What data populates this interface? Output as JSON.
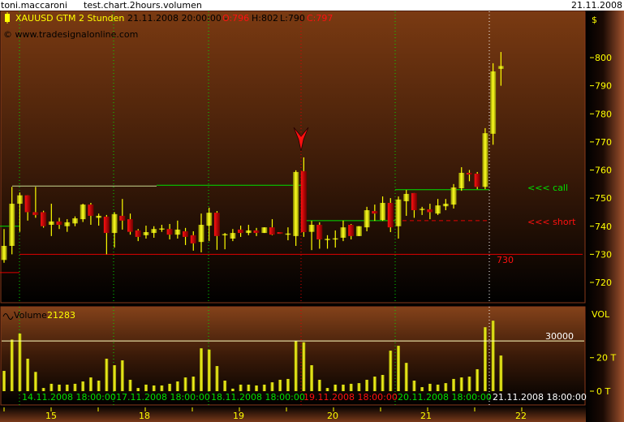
{
  "titlebar": {
    "user": "toni.maccaroni",
    "document": "test.chart.2hours.volumen",
    "date": "21.11.2008"
  },
  "price_panel": {
    "symbol": "XAUUSD GTM 2 Stunden",
    "timestamp": "21.11.2008 20:00:00 -",
    "open_label": "O:796",
    "high_label": "H:802",
    "low_label": "L:790",
    "close_label": "C:797",
    "copyright": "© www.tradesignalonline.com",
    "currency": "$",
    "call_label": "<<< call",
    "short_label": "<<< short",
    "level_label": "730"
  },
  "volume_panel": {
    "title": "Volume",
    "value": "21283",
    "axis_title": "VOL",
    "threshold_label": "30000"
  },
  "date_labels": [
    "14.11.2008 18:00:00",
    "17.11.2008 18:00:00",
    "18.11.2008 18:00:00",
    "19.11.2008 18:00:00",
    "20.11.2008 18:00:00",
    "21.11.2008 18:00:00"
  ],
  "colors": {
    "up": "#f0f000",
    "down": "#e00000",
    "background_top": "#7a3a12",
    "grid_green": "#00e000",
    "grid_red": "#e00000",
    "axis_text": "#ffff00"
  },
  "chart_data": [
    {
      "type": "candlestick",
      "yticks": [
        720,
        730,
        740,
        750,
        760,
        770,
        780,
        790,
        800
      ],
      "ylim": [
        716,
        808
      ],
      "xticks": [
        "15",
        "18",
        "19",
        "20",
        "21",
        "22"
      ],
      "candles": [
        [
          728,
          733,
          739,
          727
        ],
        [
          733,
          748,
          754,
          730
        ],
        [
          748,
          751,
          752,
          738
        ],
        [
          751,
          745,
          751,
          742
        ],
        [
          745,
          744,
          754,
          743
        ],
        [
          745,
          740,
          745.5,
          739.5
        ],
        [
          740.5,
          741.7,
          748,
          736.5
        ],
        [
          741.7,
          740.5,
          743,
          739
        ],
        [
          740,
          741.4,
          742.5,
          738
        ],
        [
          741,
          742.8,
          743.5,
          740
        ],
        [
          742.5,
          747.7,
          748,
          741.5
        ],
        [
          747.7,
          743.7,
          748.3,
          740.5
        ],
        [
          743,
          743.7,
          744.5,
          740.2
        ],
        [
          743.4,
          737.6,
          744,
          730
        ],
        [
          737.6,
          744.3,
          745,
          732.4
        ],
        [
          743.7,
          742,
          749.7,
          738.8
        ],
        [
          742.5,
          738,
          744.5,
          737
        ],
        [
          738.5,
          736.2,
          739,
          734.7
        ],
        [
          736.8,
          737.9,
          740.2,
          735.6
        ],
        [
          737.6,
          739,
          740,
          735.9
        ],
        [
          739,
          739.2,
          740.5,
          738
        ],
        [
          739,
          737,
          740.8,
          735.3
        ],
        [
          737,
          738.8,
          742,
          735.6
        ],
        [
          738.2,
          736.2,
          739.4,
          733.3
        ],
        [
          736.8,
          733.9,
          738.2,
          731.3
        ],
        [
          734.4,
          740.5,
          744.5,
          730.7
        ],
        [
          740.2,
          744.8,
          746.6,
          734.7
        ],
        [
          744.8,
          736.5,
          745.4,
          731.6
        ],
        [
          736.8,
          737.2,
          737.6,
          731.8
        ],
        [
          735.6,
          737.6,
          739,
          734.7
        ],
        [
          738.8,
          737.6,
          740.2,
          736.2
        ],
        [
          737.6,
          738.5,
          740.5,
          736.8
        ],
        [
          738.5,
          737.6,
          739.4,
          736.5
        ],
        [
          737.6,
          739.6,
          739.6,
          737.6
        ],
        [
          739.6,
          737,
          742.5,
          736.8
        ],
        [
          737.9,
          737.3,
          737.9,
          737.3
        ],
        [
          737.2,
          737.4,
          739.6,
          735
        ],
        [
          736.5,
          759.3,
          759.9,
          733
        ],
        [
          759.6,
          737.9,
          764.5,
          736.2
        ],
        [
          738,
          740.5,
          741.9,
          731.5
        ],
        [
          740.5,
          735.3,
          741.4,
          732
        ],
        [
          735.1,
          735.5,
          736.8,
          732
        ],
        [
          735.5,
          735.7,
          738.5,
          732.4
        ],
        [
          735.9,
          739.6,
          742,
          734.7
        ],
        [
          740.5,
          736.5,
          740.8,
          735.3
        ],
        [
          736.5,
          740,
          740,
          736.5
        ],
        [
          739.6,
          745.7,
          746.9,
          738.2
        ],
        [
          745.4,
          744.5,
          747.7,
          741.9
        ],
        [
          742.2,
          748.3,
          750.6,
          741.9
        ],
        [
          748.3,
          739.6,
          750,
          737.9
        ],
        [
          740,
          749.5,
          750.6,
          735.6
        ],
        [
          748.9,
          751.5,
          752.9,
          743.7
        ],
        [
          751.8,
          745.7,
          751.8,
          743
        ],
        [
          745.8,
          746.2,
          746.9,
          744
        ],
        [
          746,
          745,
          748,
          742.5
        ],
        [
          744.5,
          747.4,
          749.7,
          744
        ],
        [
          747.1,
          748,
          749.7,
          745.7
        ],
        [
          747.7,
          753.8,
          755,
          746.3
        ],
        [
          753.5,
          759,
          761,
          752.6
        ],
        [
          759,
          758.4,
          760,
          756
        ],
        [
          758.7,
          754,
          759.3,
          753.2
        ],
        [
          754,
          773.1,
          774.9,
          753.2
        ],
        [
          772.9,
          795.1,
          798,
          769
        ],
        [
          796,
          797,
          802,
          790
        ]
      ],
      "levels": {
        "call": 753,
        "short": 742,
        "support": 730
      }
    },
    {
      "type": "bar",
      "series_name": "Volume",
      "yticks_labels": [
        "0 T",
        "20 T"
      ],
      "yticks": [
        0,
        20000
      ],
      "ylim": [
        0,
        52000
      ],
      "threshold": 30000,
      "values": [
        12100,
        30800,
        34400,
        19400,
        11500,
        1900,
        4400,
        3900,
        3900,
        4400,
        5800,
        8200,
        6300,
        19400,
        15500,
        18400,
        6800,
        1900,
        3900,
        3400,
        3400,
        4400,
        5800,
        8200,
        8700,
        25600,
        24800,
        15000,
        6300,
        1500,
        3900,
        3900,
        3400,
        3900,
        5300,
        6800,
        7300,
        30000,
        29200,
        15500,
        6800,
        1900,
        3900,
        3900,
        4400,
        4800,
        6800,
        8700,
        9700,
        24200,
        27100,
        16900,
        6300,
        2400,
        4400,
        3900,
        4800,
        7300,
        8200,
        8700,
        13100,
        38200,
        42100,
        21283
      ]
    }
  ]
}
